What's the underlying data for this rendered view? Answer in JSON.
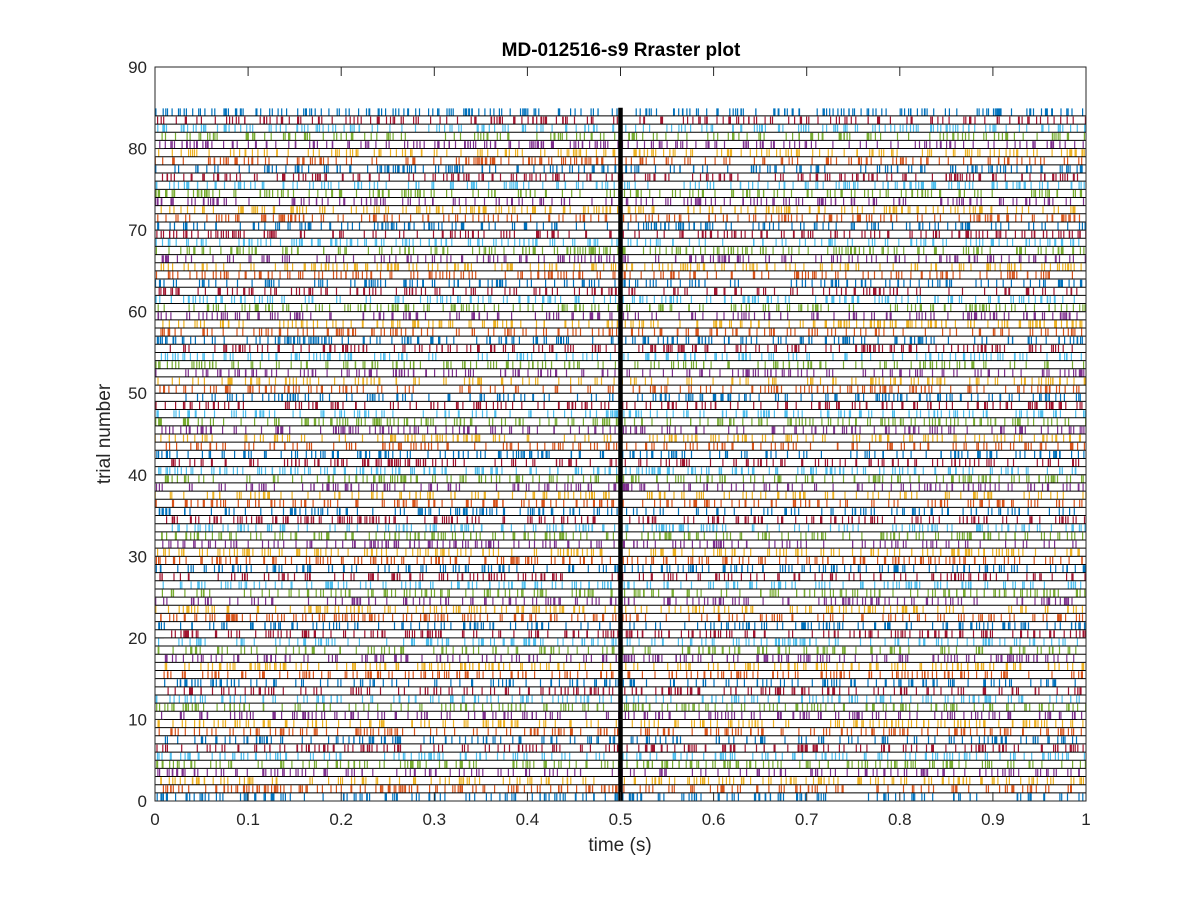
{
  "chart_data": {
    "type": "scatter",
    "title": "MD-012516-s9 Rraster plot",
    "xlabel": "time (s)",
    "ylabel": "trial number",
    "xlim": [
      0,
      1
    ],
    "ylim": [
      0,
      90
    ],
    "xticks": [
      "0",
      "0.1",
      "0.2",
      "0.3",
      "0.4",
      "0.5",
      "0.6",
      "0.7",
      "0.8",
      "0.9",
      "1"
    ],
    "yticks": [
      "0",
      "10",
      "20",
      "30",
      "40",
      "50",
      "60",
      "70",
      "80",
      "90"
    ],
    "grid": false,
    "n_trials": 85,
    "trial_spacing": 1,
    "marker": "vertical tick per spike, one row per trial",
    "spikes_per_trial_approx": 180,
    "series_colors": [
      "#0072BD",
      "#D95319",
      "#EDB120",
      "#7E2F8E",
      "#77AC30",
      "#4DBEEE",
      "#A2142F"
    ],
    "color_cycle": "trial k uses series_colors[(k-1) mod 7]",
    "reference_line": {
      "x": 0.5,
      "y_from": 0,
      "y_to": 85,
      "color": "#000000"
    },
    "row_baseline_color": "#000000"
  }
}
